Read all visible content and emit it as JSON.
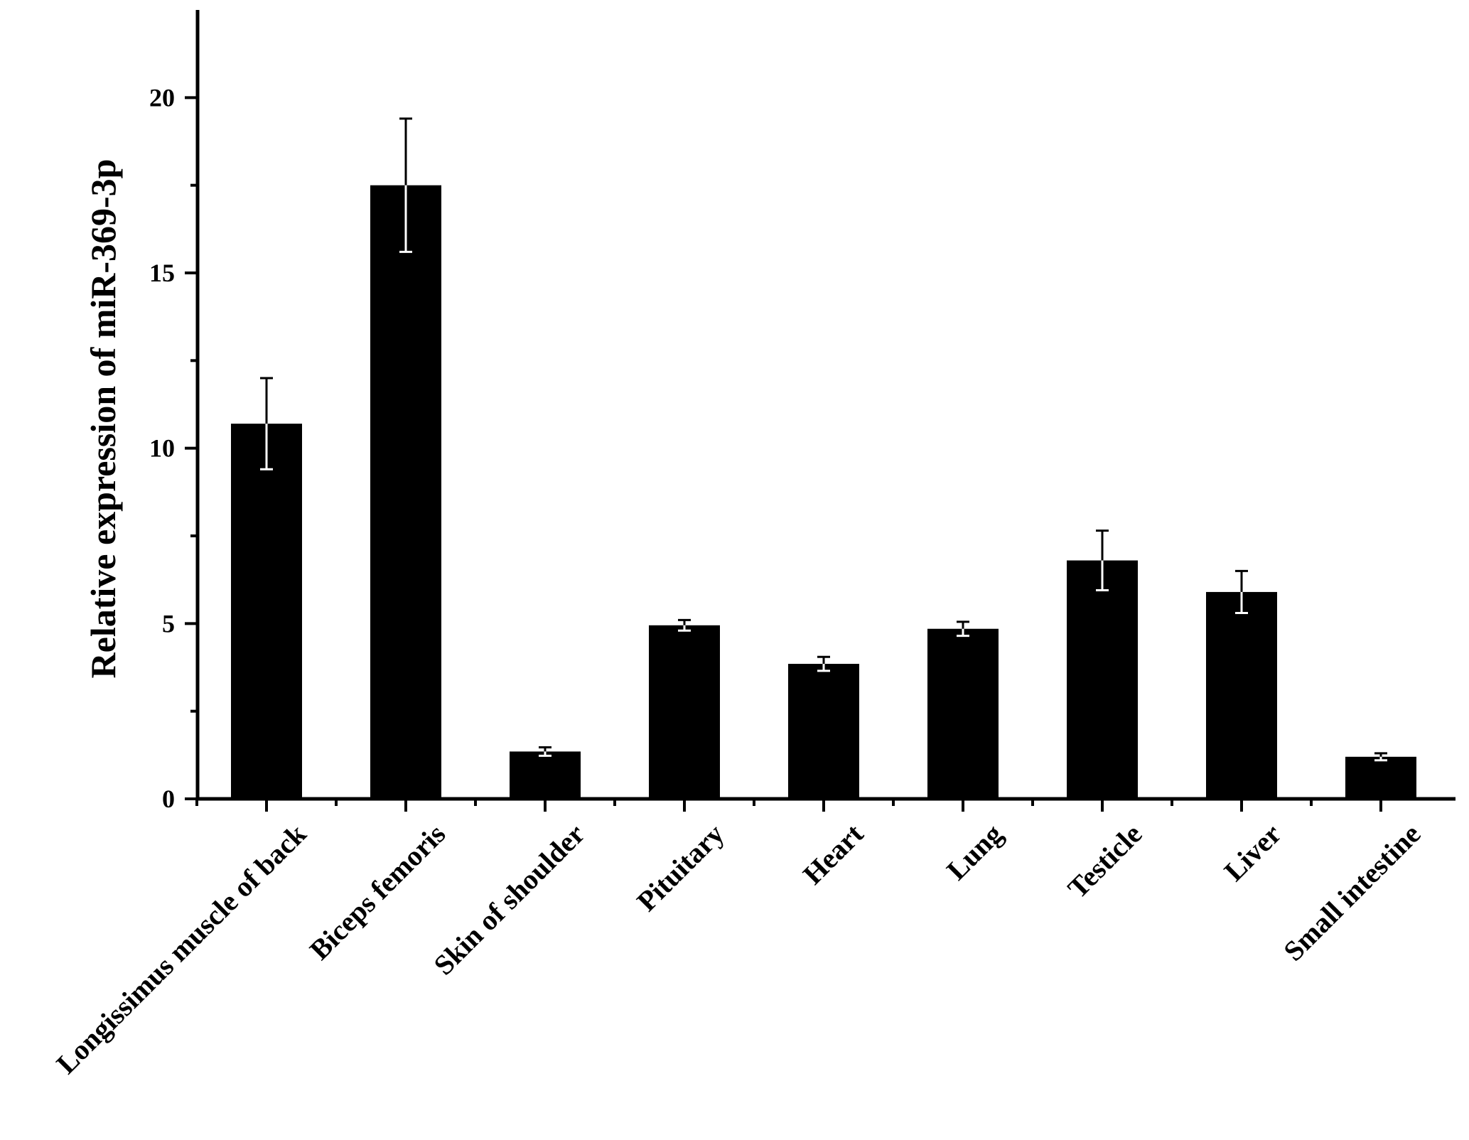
{
  "chart_data": {
    "type": "bar",
    "title": "",
    "xlabel": "",
    "ylabel": "Relative expression of miR-369-3p",
    "categories": [
      "Longissimus muscle of back",
      "Biceps femoris",
      "Skin of shoulder",
      "Pituitary",
      "Heart",
      "Lung",
      "Testicle",
      "Liver",
      "Small intestine"
    ],
    "values": [
      10.7,
      17.5,
      1.35,
      4.95,
      3.85,
      4.85,
      6.8,
      5.9,
      1.2
    ],
    "errors": [
      1.3,
      1.9,
      0.12,
      0.15,
      0.2,
      0.2,
      0.85,
      0.6,
      0.1
    ],
    "ylim": [
      0,
      22.5
    ],
    "yticks": [
      0,
      5,
      10,
      15,
      20
    ],
    "grid": false,
    "colors": {
      "bar": "#000000",
      "error_bar": "#ffffff"
    }
  }
}
